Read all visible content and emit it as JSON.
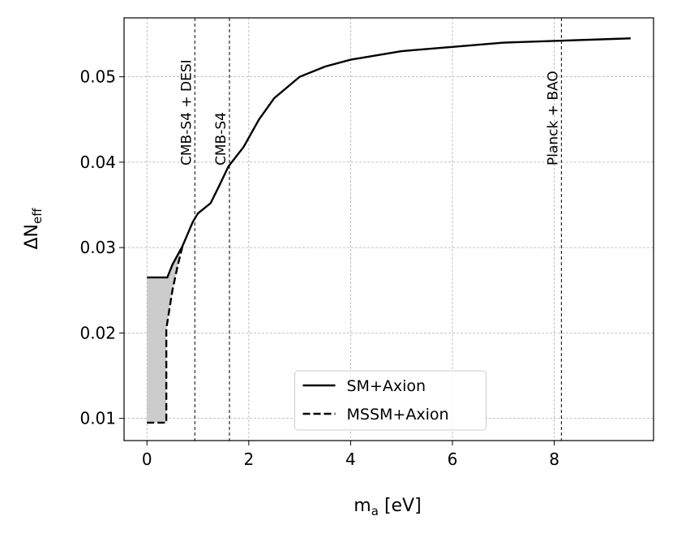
{
  "chart_data": {
    "type": "line",
    "xlabel": "m",
    "xlabel_sub": "a",
    "xlabel_unit": "[eV]",
    "ylabel": "ΔN",
    "ylabel_sub": "eff",
    "xlim": [
      -0.45,
      9.95
    ],
    "ylim": [
      0.0074,
      0.0569
    ],
    "xticks": [
      0,
      2,
      4,
      6,
      8
    ],
    "yticks": [
      0.01,
      0.02,
      0.03,
      0.04,
      0.05
    ],
    "grid": true,
    "legend": "lower center",
    "fill_between": true,
    "series": [
      {
        "name": "SM+Axion",
        "color": "#000000",
        "dash": false,
        "x": [
          0,
          0.4,
          0.5,
          0.7,
          0.9,
          1.0,
          1.25,
          1.4,
          1.6,
          1.9,
          2.2,
          2.5,
          3.0,
          3.5,
          4.0,
          5.0,
          6.0,
          7.0,
          8.0,
          9.5
        ],
        "values": [
          0.0265,
          0.0265,
          0.028,
          0.0302,
          0.033,
          0.034,
          0.0352,
          0.037,
          0.0395,
          0.0418,
          0.045,
          0.0475,
          0.05,
          0.0512,
          0.052,
          0.053,
          0.0535,
          0.054,
          0.0542,
          0.0545
        ]
      },
      {
        "name": "MSSM+Axion",
        "color": "#000000",
        "dash": true,
        "x": [
          0,
          0.38,
          0.38,
          0.5,
          0.6,
          0.7
        ],
        "values": [
          0.0095,
          0.0095,
          0.0205,
          0.025,
          0.0278,
          0.0302
        ]
      }
    ],
    "vlines": [
      {
        "x": 0.94,
        "label": "CMB-S4 + DESI"
      },
      {
        "x": 1.62,
        "label": "CMB-S4"
      },
      {
        "x": 8.14,
        "label": "Planck + BAO"
      }
    ]
  }
}
